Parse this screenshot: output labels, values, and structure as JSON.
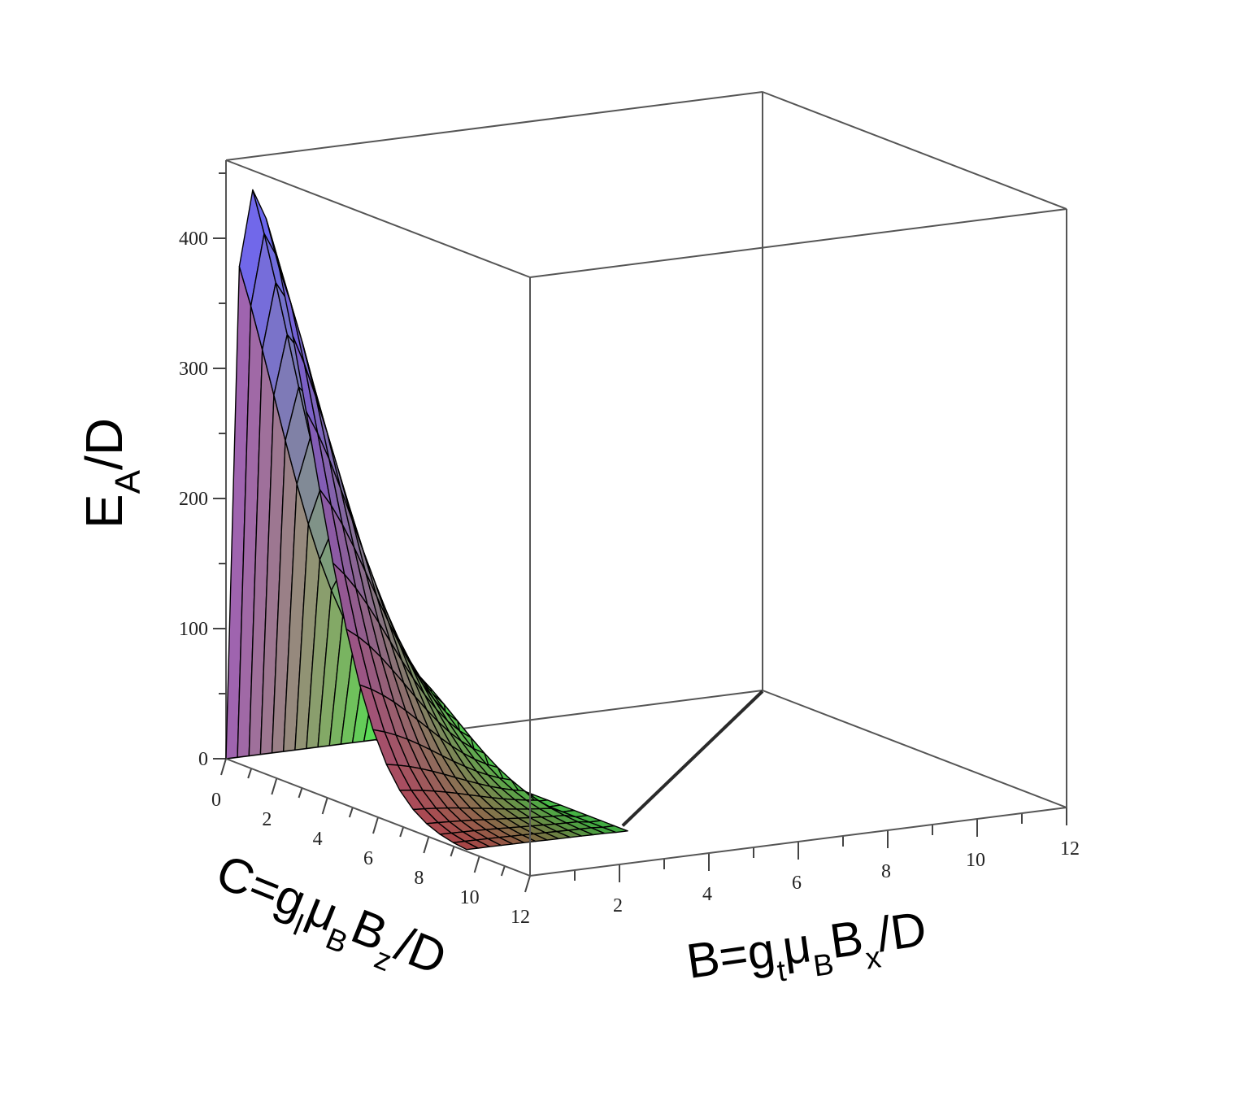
{
  "chart_data": {
    "type": "surface3d",
    "title": "",
    "zlabel": {
      "main": "E",
      "sub": "A",
      "tail": "/D"
    },
    "xlabel": {
      "parts": [
        {
          "t": "C=g",
          "s": "normal"
        },
        {
          "t": "l",
          "s": "sub"
        },
        {
          "t": "μ",
          "s": "normal"
        },
        {
          "t": "B",
          "s": "sub"
        },
        {
          "t": "B",
          "s": "normal"
        },
        {
          "t": "z",
          "s": "sub"
        },
        {
          "t": "/D",
          "s": "normal"
        }
      ]
    },
    "ylabel": {
      "parts": [
        {
          "t": "B=g",
          "s": "normal"
        },
        {
          "t": "t",
          "s": "sub"
        },
        {
          "t": "μ",
          "s": "normal"
        },
        {
          "t": "B",
          "s": "sub"
        },
        {
          "t": "B",
          "s": "normal"
        },
        {
          "t": "x",
          "s": "sub"
        },
        {
          "t": "/D",
          "s": "normal"
        }
      ]
    },
    "c_range": [
      0,
      12
    ],
    "b_range": [
      0,
      12
    ],
    "z_range": [
      0,
      460
    ],
    "c_ticks": [
      0,
      2,
      4,
      6,
      8,
      10,
      12
    ],
    "b_ticks": [
      2,
      4,
      6,
      8,
      10,
      12
    ],
    "z_ticks": [
      0,
      100,
      200,
      300,
      400
    ],
    "c_tick_labels": [
      "0",
      "2",
      "4",
      "6",
      "8",
      "10",
      "12"
    ],
    "b_tick_labels": [
      "2",
      "4",
      "6",
      "8",
      "10",
      "12"
    ],
    "z_tick_labels": [
      "0",
      "100",
      "200",
      "300",
      "400"
    ],
    "surface": {
      "peak_value": 450,
      "peak_at_c": 0.8,
      "peak_at_b": 0.2,
      "support_c_max": 9.5,
      "support_b_max": 3.3,
      "grid_c_steps": 18,
      "grid_b_steps": 14
    },
    "colors": {
      "low_c_high_z": "#6a6aff",
      "high_c_low_z": "#e15a5a",
      "high_b": "#55e055",
      "mesh": "#000000"
    },
    "grid": false,
    "legend": "none"
  }
}
